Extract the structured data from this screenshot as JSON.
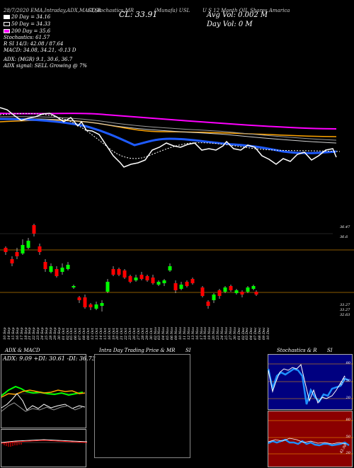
{
  "header": {
    "symbol_line": "28/7/2020  EMA,Intraday,ADX,MACD,R",
    "mr_line": "SI,Stochastics,MR",
    "munafa": "(Munafa) USL",
    "desc": "U S 12 Month OIL Shares Amarica",
    "cl_label": "CL: 33.91",
    "avg_vol": "Avg Vol: 0.002  M",
    "day_vol": "Day Vol: 0  M"
  },
  "legend": [
    {
      "label": "20  Day = 34.16",
      "color": "#ffffff"
    },
    {
      "label": "50  Day = 34.33",
      "color": "#000000"
    },
    {
      "label": "200  Day = 35.6",
      "color": "#ff00ff"
    }
  ],
  "indicators": {
    "stoch": "Stochastics: 61.57",
    "rsi": "R                    SI 14/3: 42.08  /  87.64",
    "macd": "MACD: 34.08,  34.21,  -0.13  D",
    "adx": "ADX:                          (MGR) 9.1,  30.6,  36.7",
    "adx_signal": "ADX  signal: SELL  Growing @ 7%"
  },
  "price_labels": [
    "36.47",
    "36.6",
    "33.27",
    "33.27",
    "32.63"
  ],
  "dates": [
    "10 Sep",
    "14 Sep",
    "15 Sep",
    "16 Sep",
    "17 Sep",
    "18 Sep",
    "21 Sep",
    "22 Sep",
    "23 Sep",
    "24 Sep",
    "25 Sep",
    "28 Sep",
    "29 Sep",
    "30 Sep",
    "01 Oct",
    "02 Oct",
    "05 Oct",
    "06 Oct",
    "07 Oct",
    "08 Oct",
    "09 Oct",
    "12 Oct",
    "13 Oct",
    "14 Oct",
    "15 Oct",
    "16 Oct",
    "19 Oct",
    "20 Oct",
    "21 Oct",
    "22 Oct",
    "23 Oct",
    "26 Oct",
    "27 Oct",
    "28 Oct",
    "29 Oct",
    "30 Oct",
    "02 Nov",
    "03 Nov",
    "04 Nov",
    "05 Nov",
    "06 Nov",
    "09 Nov",
    "10 Nov",
    "11 Nov",
    "12 Nov",
    "13 Nov",
    "16 Nov",
    "17 Nov",
    "18 Nov",
    "19 Nov",
    "20 Nov",
    "23 Nov",
    "24 Nov",
    "25 Nov",
    "27 Nov",
    "30 Nov",
    "01 Dec",
    "02 Dec",
    "03 Dec",
    "04 Dec",
    "07 Dec",
    "08 Dec",
    "09 Dec",
    "10 Dec"
  ],
  "panels": {
    "adx_title": "ADX  & MACD",
    "adx_values": "ADX: 9.09  +DI: 30.61  -DI: 36.73",
    "intraday_title": "Intra  Day Trading Price  & MR",
    "intraday_suffix": "SI",
    "stoch_title": "Stochastics & R",
    "stoch_suffix": "SI",
    "stoch_ticks": [
      "80",
      "50",
      "20"
    ],
    "stoch_value": "61.57",
    "rsi_ticks": [
      "80",
      "50",
      "20"
    ],
    "rsi_value": "42.08"
  },
  "colors": {
    "bull": "#00ff00",
    "bear": "#ff0000",
    "ema200": "#ff00ff",
    "ema50": "#ffa500",
    "ema_blue": "#1e5bff",
    "rsi_bg": "#8b0000",
    "stoch_bg": "#000080"
  }
}
